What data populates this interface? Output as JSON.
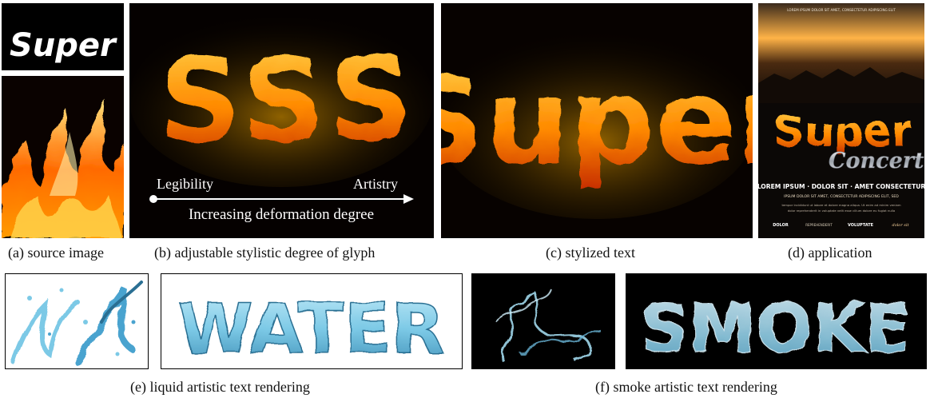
{
  "panel_a": {
    "text_image_word": "Super",
    "caption": "(a) source image"
  },
  "panel_b": {
    "glyphs": [
      "S",
      "S",
      "S"
    ],
    "left_label": "Legibility",
    "right_label": "Artistry",
    "axis_label": "Increasing deformation degree",
    "caption": "(b) adjustable stylistic degree of glyph"
  },
  "panel_c": {
    "word": "Super",
    "caption": "(c) stylized text"
  },
  "panel_d": {
    "poster_top_text": "LOREM IPSUM DOLOR SIT AMET, CONSECTETUR ADIPISCING ELIT",
    "title_main": "Super",
    "title_script": "Concert",
    "headline": "LOREM IPSUM · DOLOR SIT · AMET CONSECTETUR",
    "subline": "IPSUM DOLOR SIT AMET, CONSECTETUR ADIPISCING ELIT, SED",
    "body_line1": "tempor incididunt ut labore et dolore magna aliqua. Ut enim ad minim veniam",
    "body_line2": "dolor reprehenderit in voluptate velit esse cillum dolore eu fugiat nulla",
    "footer_items": [
      "DOLOR",
      "REPREHENDERIT",
      "VOLUPTATE",
      "dolor sit"
    ],
    "caption": "(d) application"
  },
  "panel_e": {
    "word": "WATER",
    "caption": "(e) liquid artistic text rendering"
  },
  "panel_f": {
    "word": "SMOKE",
    "caption": "(f) smoke artistic text rendering"
  },
  "colors": {
    "fire_core": "#ffd24a",
    "fire_mid": "#ff8a00",
    "fire_edge": "#c42a00",
    "water": "#7cc9e6",
    "water_dark": "#2a6f93",
    "smoke": "#9fd6ea"
  }
}
